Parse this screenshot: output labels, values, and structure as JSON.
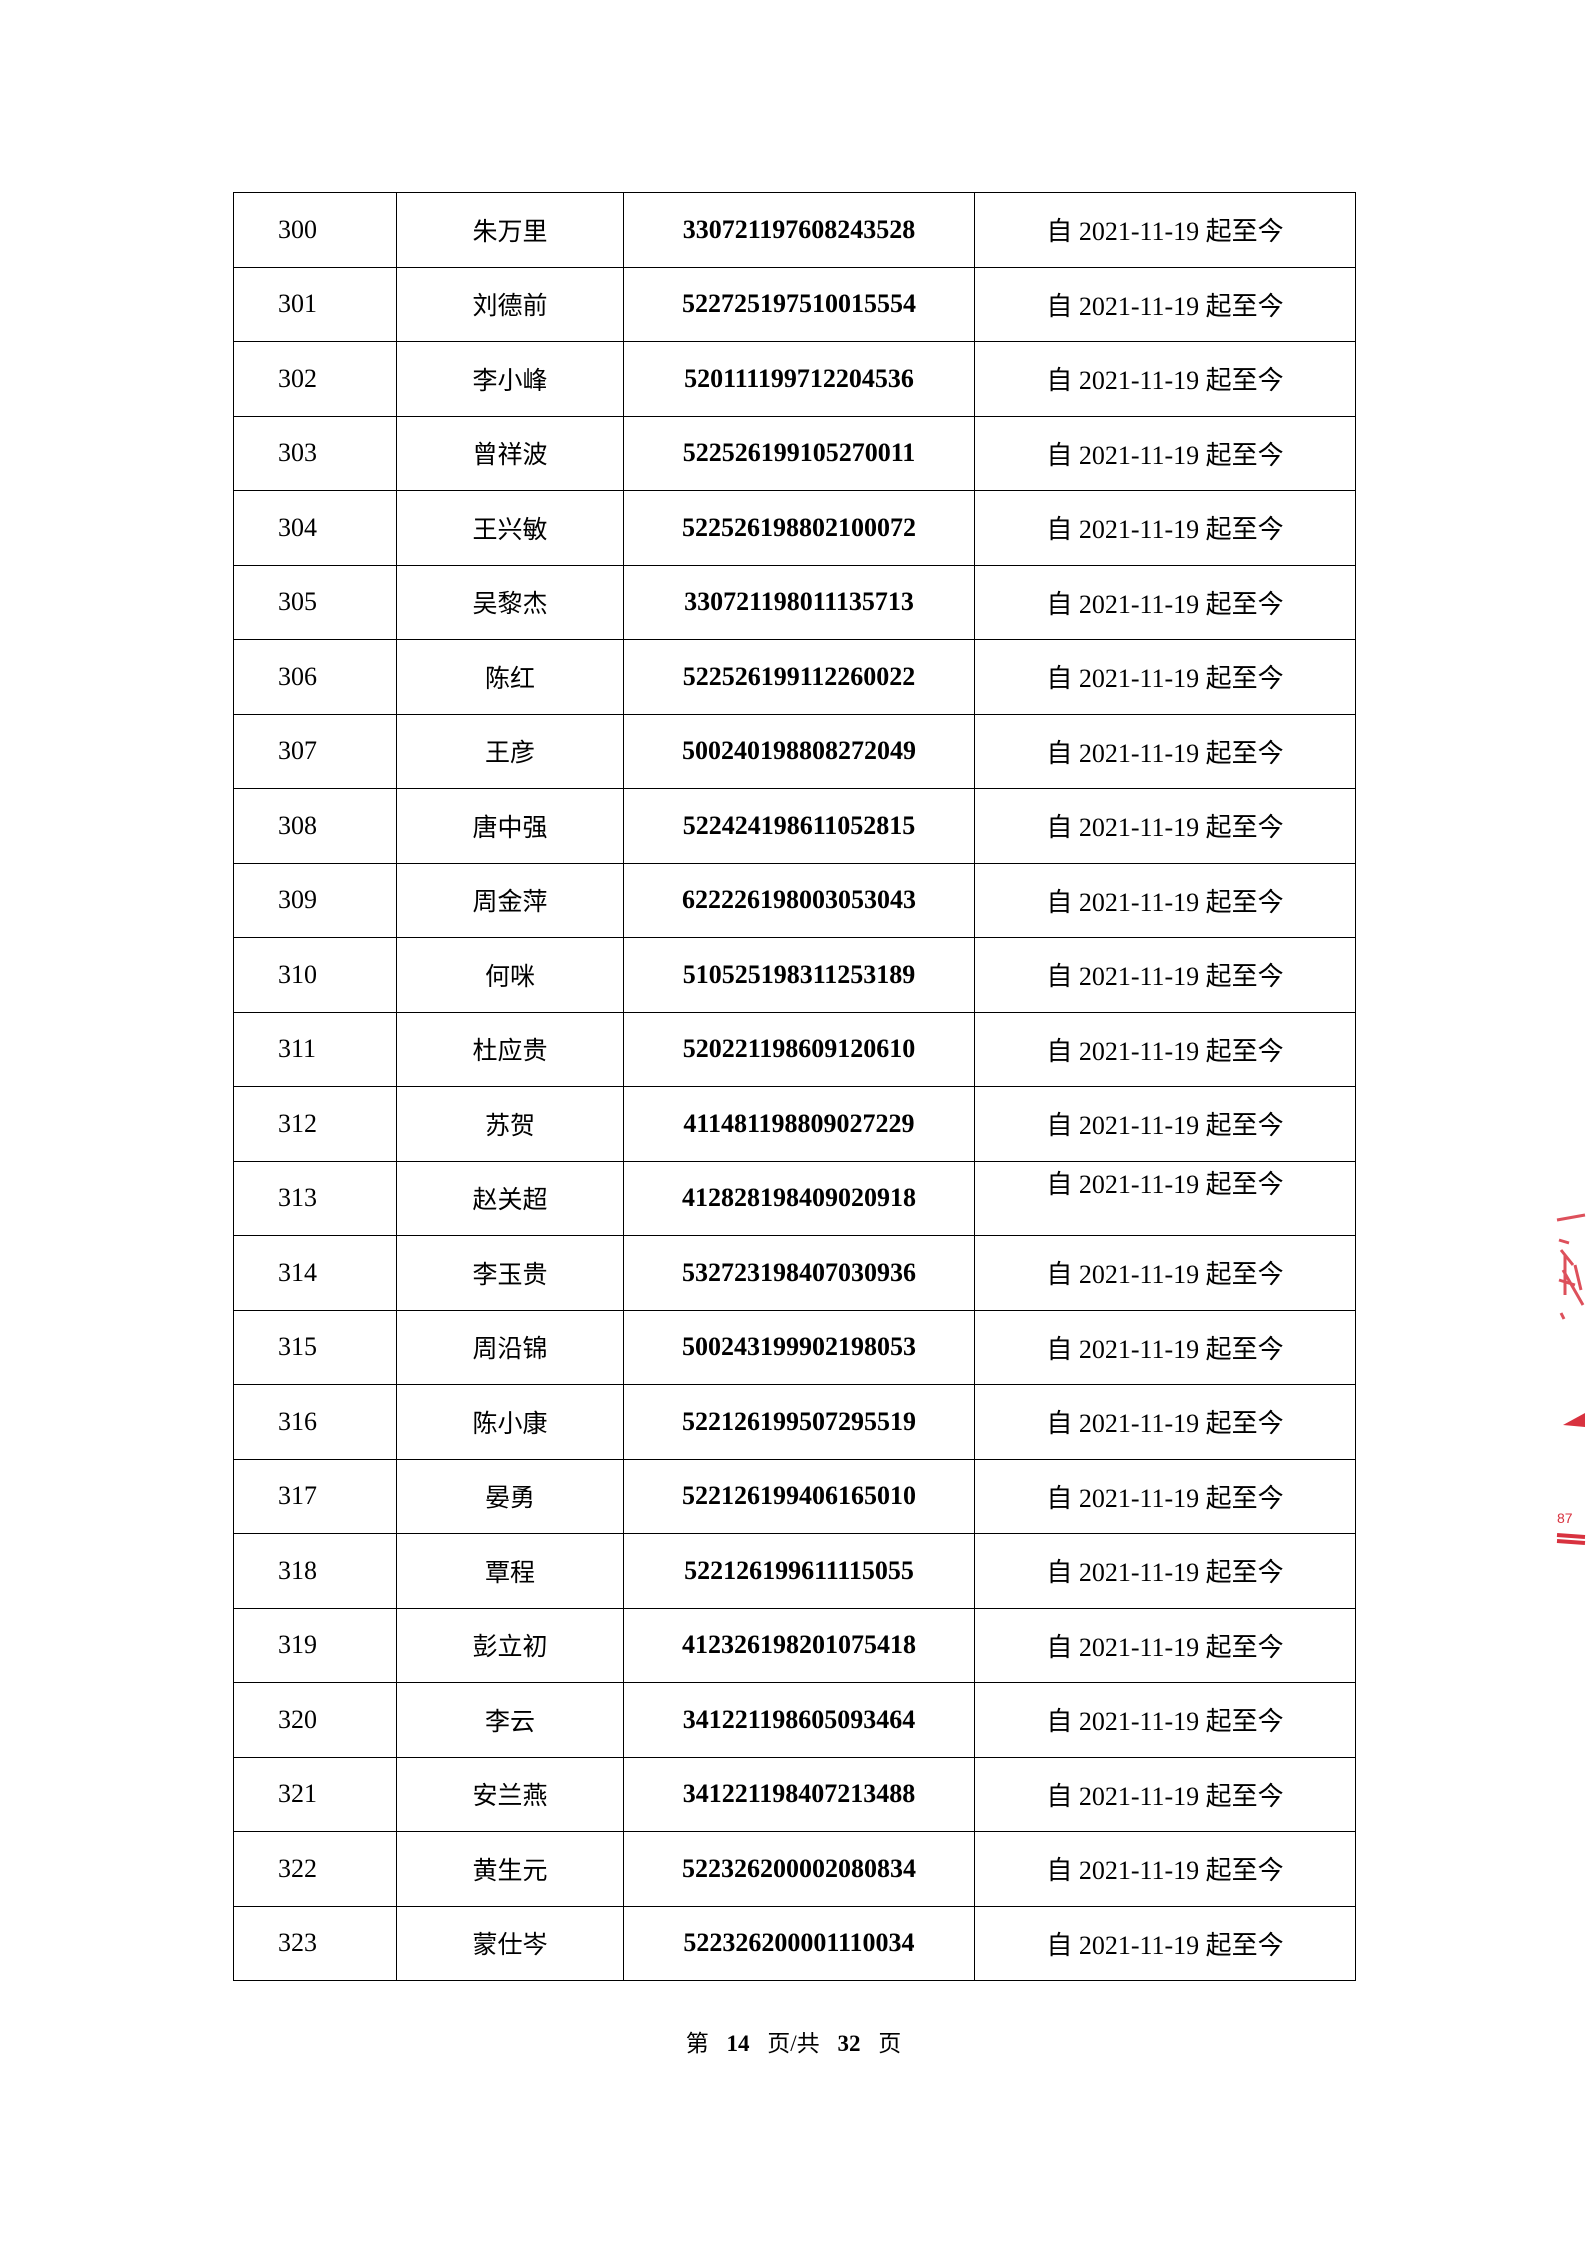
{
  "table": {
    "rows": [
      {
        "no": "300",
        "name": "朱万里",
        "id": "330721197608243528",
        "period": "自 2021-11-19 起至今"
      },
      {
        "no": "301",
        "name": "刘德前",
        "id": "522725197510015554",
        "period": "自 2021-11-19 起至今"
      },
      {
        "no": "302",
        "name": "李小峰",
        "id": "520111199712204536",
        "period": "自 2021-11-19 起至今"
      },
      {
        "no": "303",
        "name": "曾祥波",
        "id": "522526199105270011",
        "period": "自 2021-11-19 起至今"
      },
      {
        "no": "304",
        "name": "王兴敏",
        "id": "522526198802100072",
        "period": "自 2021-11-19 起至今"
      },
      {
        "no": "305",
        "name": "吴黎杰",
        "id": "330721198011135713",
        "period": "自 2021-11-19 起至今"
      },
      {
        "no": "306",
        "name": "陈红",
        "id": "522526199112260022",
        "period": "自 2021-11-19 起至今"
      },
      {
        "no": "307",
        "name": "王彦",
        "id": "500240198808272049",
        "period": "自 2021-11-19 起至今"
      },
      {
        "no": "308",
        "name": "唐中强",
        "id": "522424198611052815",
        "period": "自 2021-11-19 起至今"
      },
      {
        "no": "309",
        "name": "周金萍",
        "id": "622226198003053043",
        "period": "自 2021-11-19 起至今"
      },
      {
        "no": "310",
        "name": "何咪",
        "id": "510525198311253189",
        "period": "自 2021-11-19 起至今"
      },
      {
        "no": "311",
        "name": "杜应贵",
        "id": "520221198609120610",
        "period": "自 2021-11-19 起至今"
      },
      {
        "no": "312",
        "name": "苏贺",
        "id": "411481198809027229",
        "period": "自 2021-11-19 起至今"
      },
      {
        "no": "313",
        "name": "赵关超",
        "id": "412828198409020918",
        "period": "自 2021-11-19 起至今"
      },
      {
        "no": "314",
        "name": "李玉贵",
        "id": "532723198407030936",
        "period": "自 2021-11-19 起至今"
      },
      {
        "no": "315",
        "name": "周沿锦",
        "id": "500243199902198053",
        "period": "自 2021-11-19 起至今"
      },
      {
        "no": "316",
        "name": "陈小康",
        "id": "522126199507295519",
        "period": "自 2021-11-19 起至今"
      },
      {
        "no": "317",
        "name": "晏勇",
        "id": "522126199406165010",
        "period": "自 2021-11-19 起至今"
      },
      {
        "no": "318",
        "name": "覃程",
        "id": "522126199611115055",
        "period": "自 2021-11-19 起至今"
      },
      {
        "no": "319",
        "name": "彭立初",
        "id": "412326198201075418",
        "period": "自 2021-11-19 起至今"
      },
      {
        "no": "320",
        "name": "李云",
        "id": "341221198605093464",
        "period": "自 2021-11-19 起至今"
      },
      {
        "no": "321",
        "name": "安兰燕",
        "id": "341221198407213488",
        "period": "自 2021-11-19 起至今"
      },
      {
        "no": "322",
        "name": "黄生元",
        "id": "522326200002080834",
        "period": "自 2021-11-19 起至今"
      },
      {
        "no": "323",
        "name": "蒙仕岑",
        "id": "522326200001110034",
        "period": "自 2021-11-19 起至今"
      }
    ]
  },
  "footer": {
    "prefix": "第",
    "page": "14",
    "middle": "页/共",
    "total": "32",
    "suffix": "页"
  },
  "stamp": {
    "color": "#d8323f",
    "text": "87"
  }
}
